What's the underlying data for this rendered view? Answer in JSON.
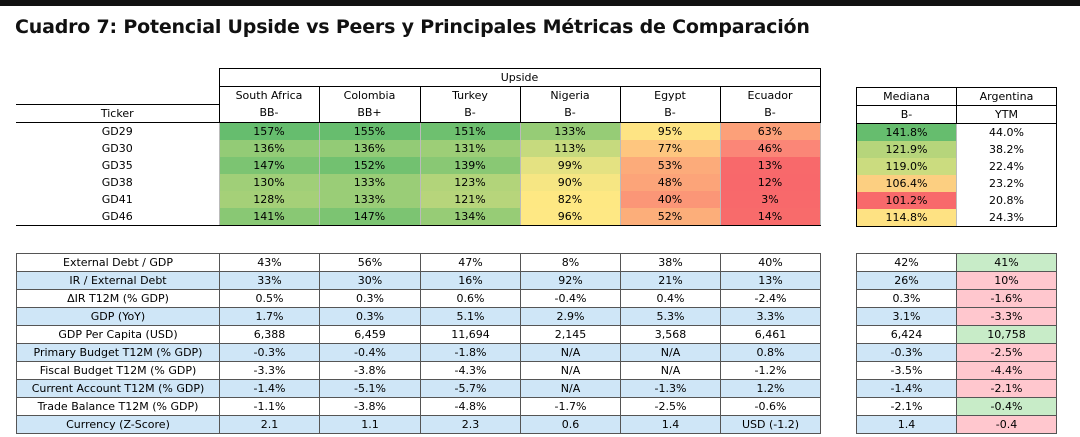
{
  "title": "Cuadro 7: Potencial Upside vs Peers y Principales Métricas de Comparación",
  "upside_header": "Upside",
  "ticker_header": "Ticker",
  "countries": [
    "South Africa",
    "Colombia",
    "Turkey",
    "Nigeria",
    "Egypt",
    "Ecuador"
  ],
  "ratings": [
    "BB-",
    "BB+",
    "B-",
    "B-",
    "B-",
    "B-"
  ],
  "right_headers": {
    "mediana": "Mediana",
    "argentina": "Argentina",
    "mediana_rating": "B-",
    "argentina_sub": "YTM"
  },
  "upside_rows": [
    {
      "ticker": "GD29",
      "values": [
        "157%",
        "155%",
        "151%",
        "133%",
        "95%",
        "63%"
      ],
      "mediana": "141.8%",
      "argentina": "44.0%"
    },
    {
      "ticker": "GD30",
      "values": [
        "136%",
        "136%",
        "131%",
        "113%",
        "77%",
        "46%"
      ],
      "mediana": "121.9%",
      "argentina": "38.2%"
    },
    {
      "ticker": "GD35",
      "values": [
        "147%",
        "152%",
        "139%",
        "99%",
        "53%",
        "13%"
      ],
      "mediana": "119.0%",
      "argentina": "22.4%"
    },
    {
      "ticker": "GD38",
      "values": [
        "130%",
        "133%",
        "123%",
        "90%",
        "48%",
        "12%"
      ],
      "mediana": "106.4%",
      "argentina": "23.2%"
    },
    {
      "ticker": "GD41",
      "values": [
        "128%",
        "133%",
        "121%",
        "82%",
        "40%",
        "3%"
      ],
      "mediana": "101.2%",
      "argentina": "20.8%"
    },
    {
      "ticker": "GD46",
      "values": [
        "141%",
        "147%",
        "134%",
        "96%",
        "52%",
        "14%"
      ],
      "mediana": "114.8%",
      "argentina": "24.3%"
    }
  ],
  "upside_colors": [
    [
      "#66bd6e",
      "#67bd6e",
      "#6ec06f",
      "#96cc76",
      "#fee484",
      "#fca079"
    ],
    [
      "#93cb76",
      "#93cb76",
      "#9dce77",
      "#c6da7e",
      "#fec67f",
      "#fb8677"
    ],
    [
      "#7cc472",
      "#72c170",
      "#89c874",
      "#e4e282",
      "#fcab7a",
      "#f8696b"
    ],
    [
      "#a0cf78",
      "#9acd77",
      "#b2d47a",
      "#f6e683",
      "#fca479",
      "#f8686b"
    ],
    [
      "#a5d078",
      "#9acd77",
      "#b7d57b",
      "#fee883",
      "#fb9677",
      "#f8696b"
    ],
    [
      "#89c874",
      "#7cc472",
      "#97cc76",
      "#fee884",
      "#fcae7a",
      "#f86b6b"
    ]
  ],
  "mediana_colors": [
    "#66bd6e",
    "#b6d57b",
    "#cbdc7f",
    "#fccf81",
    "#f8696b",
    "#fee283"
  ],
  "metrics": [
    {
      "label": "External Debt / GDP",
      "values": [
        "43%",
        "56%",
        "47%",
        "8%",
        "38%",
        "40%"
      ],
      "mediana": "42%",
      "argentina": "41%",
      "arg_color": "#c8ecc8"
    },
    {
      "label": "IR / External Debt",
      "values": [
        "33%",
        "30%",
        "16%",
        "92%",
        "21%",
        "13%"
      ],
      "mediana": "26%",
      "argentina": "10%",
      "arg_color": "#ffc7ce"
    },
    {
      "label": "ΔIR T12M (% GDP)",
      "values": [
        "0.5%",
        "0.3%",
        "0.6%",
        "-0.4%",
        "0.4%",
        "-2.4%"
      ],
      "mediana": "0.3%",
      "argentina": "-1.6%",
      "arg_color": "#ffc7ce"
    },
    {
      "label": "GDP (YoY)",
      "values": [
        "1.7%",
        "0.3%",
        "5.1%",
        "2.9%",
        "5.3%",
        "3.3%"
      ],
      "mediana": "3.1%",
      "argentina": "-3.3%",
      "arg_color": "#ffc7ce"
    },
    {
      "label": "GDP Per Capita (USD)",
      "values": [
        "6,388",
        "6,459",
        "11,694",
        "2,145",
        "3,568",
        "6,461"
      ],
      "mediana": "6,424",
      "argentina": "10,758",
      "arg_color": "#c8ecc8"
    },
    {
      "label": "Primary Budget T12M (% GDP)",
      "values": [
        "-0.3%",
        "-0.4%",
        "-1.8%",
        "N/A",
        "N/A",
        "0.8%"
      ],
      "mediana": "-0.3%",
      "argentina": "-2.5%",
      "arg_color": "#ffc7ce"
    },
    {
      "label": "Fiscal Budget T12M (% GDP)",
      "values": [
        "-3.3%",
        "-3.8%",
        "-4.3%",
        "N/A",
        "N/A",
        "-1.2%"
      ],
      "mediana": "-3.5%",
      "argentina": "-4.4%",
      "arg_color": "#ffc7ce"
    },
    {
      "label": "Current Account T12M (% GDP)",
      "values": [
        "-1.4%",
        "-5.1%",
        "-5.7%",
        "N/A",
        "-1.3%",
        "1.2%"
      ],
      "mediana": "-1.4%",
      "argentina": "-2.1%",
      "arg_color": "#ffc7ce"
    },
    {
      "label": "Trade Balance T12M (% GDP)",
      "values": [
        "-1.1%",
        "-3.8%",
        "-4.8%",
        "-1.7%",
        "-2.5%",
        "-0.6%"
      ],
      "mediana": "-2.1%",
      "argentina": "-0.4%",
      "arg_color": "#c8ecc8"
    },
    {
      "label": "Currency (Z-Score)",
      "values": [
        "2.1",
        "1.1",
        "2.3",
        "0.6",
        "1.4",
        "USD (-1.2)"
      ],
      "mediana": "1.4",
      "argentina": "-0.4",
      "arg_color": "#ffc7ce"
    }
  ]
}
